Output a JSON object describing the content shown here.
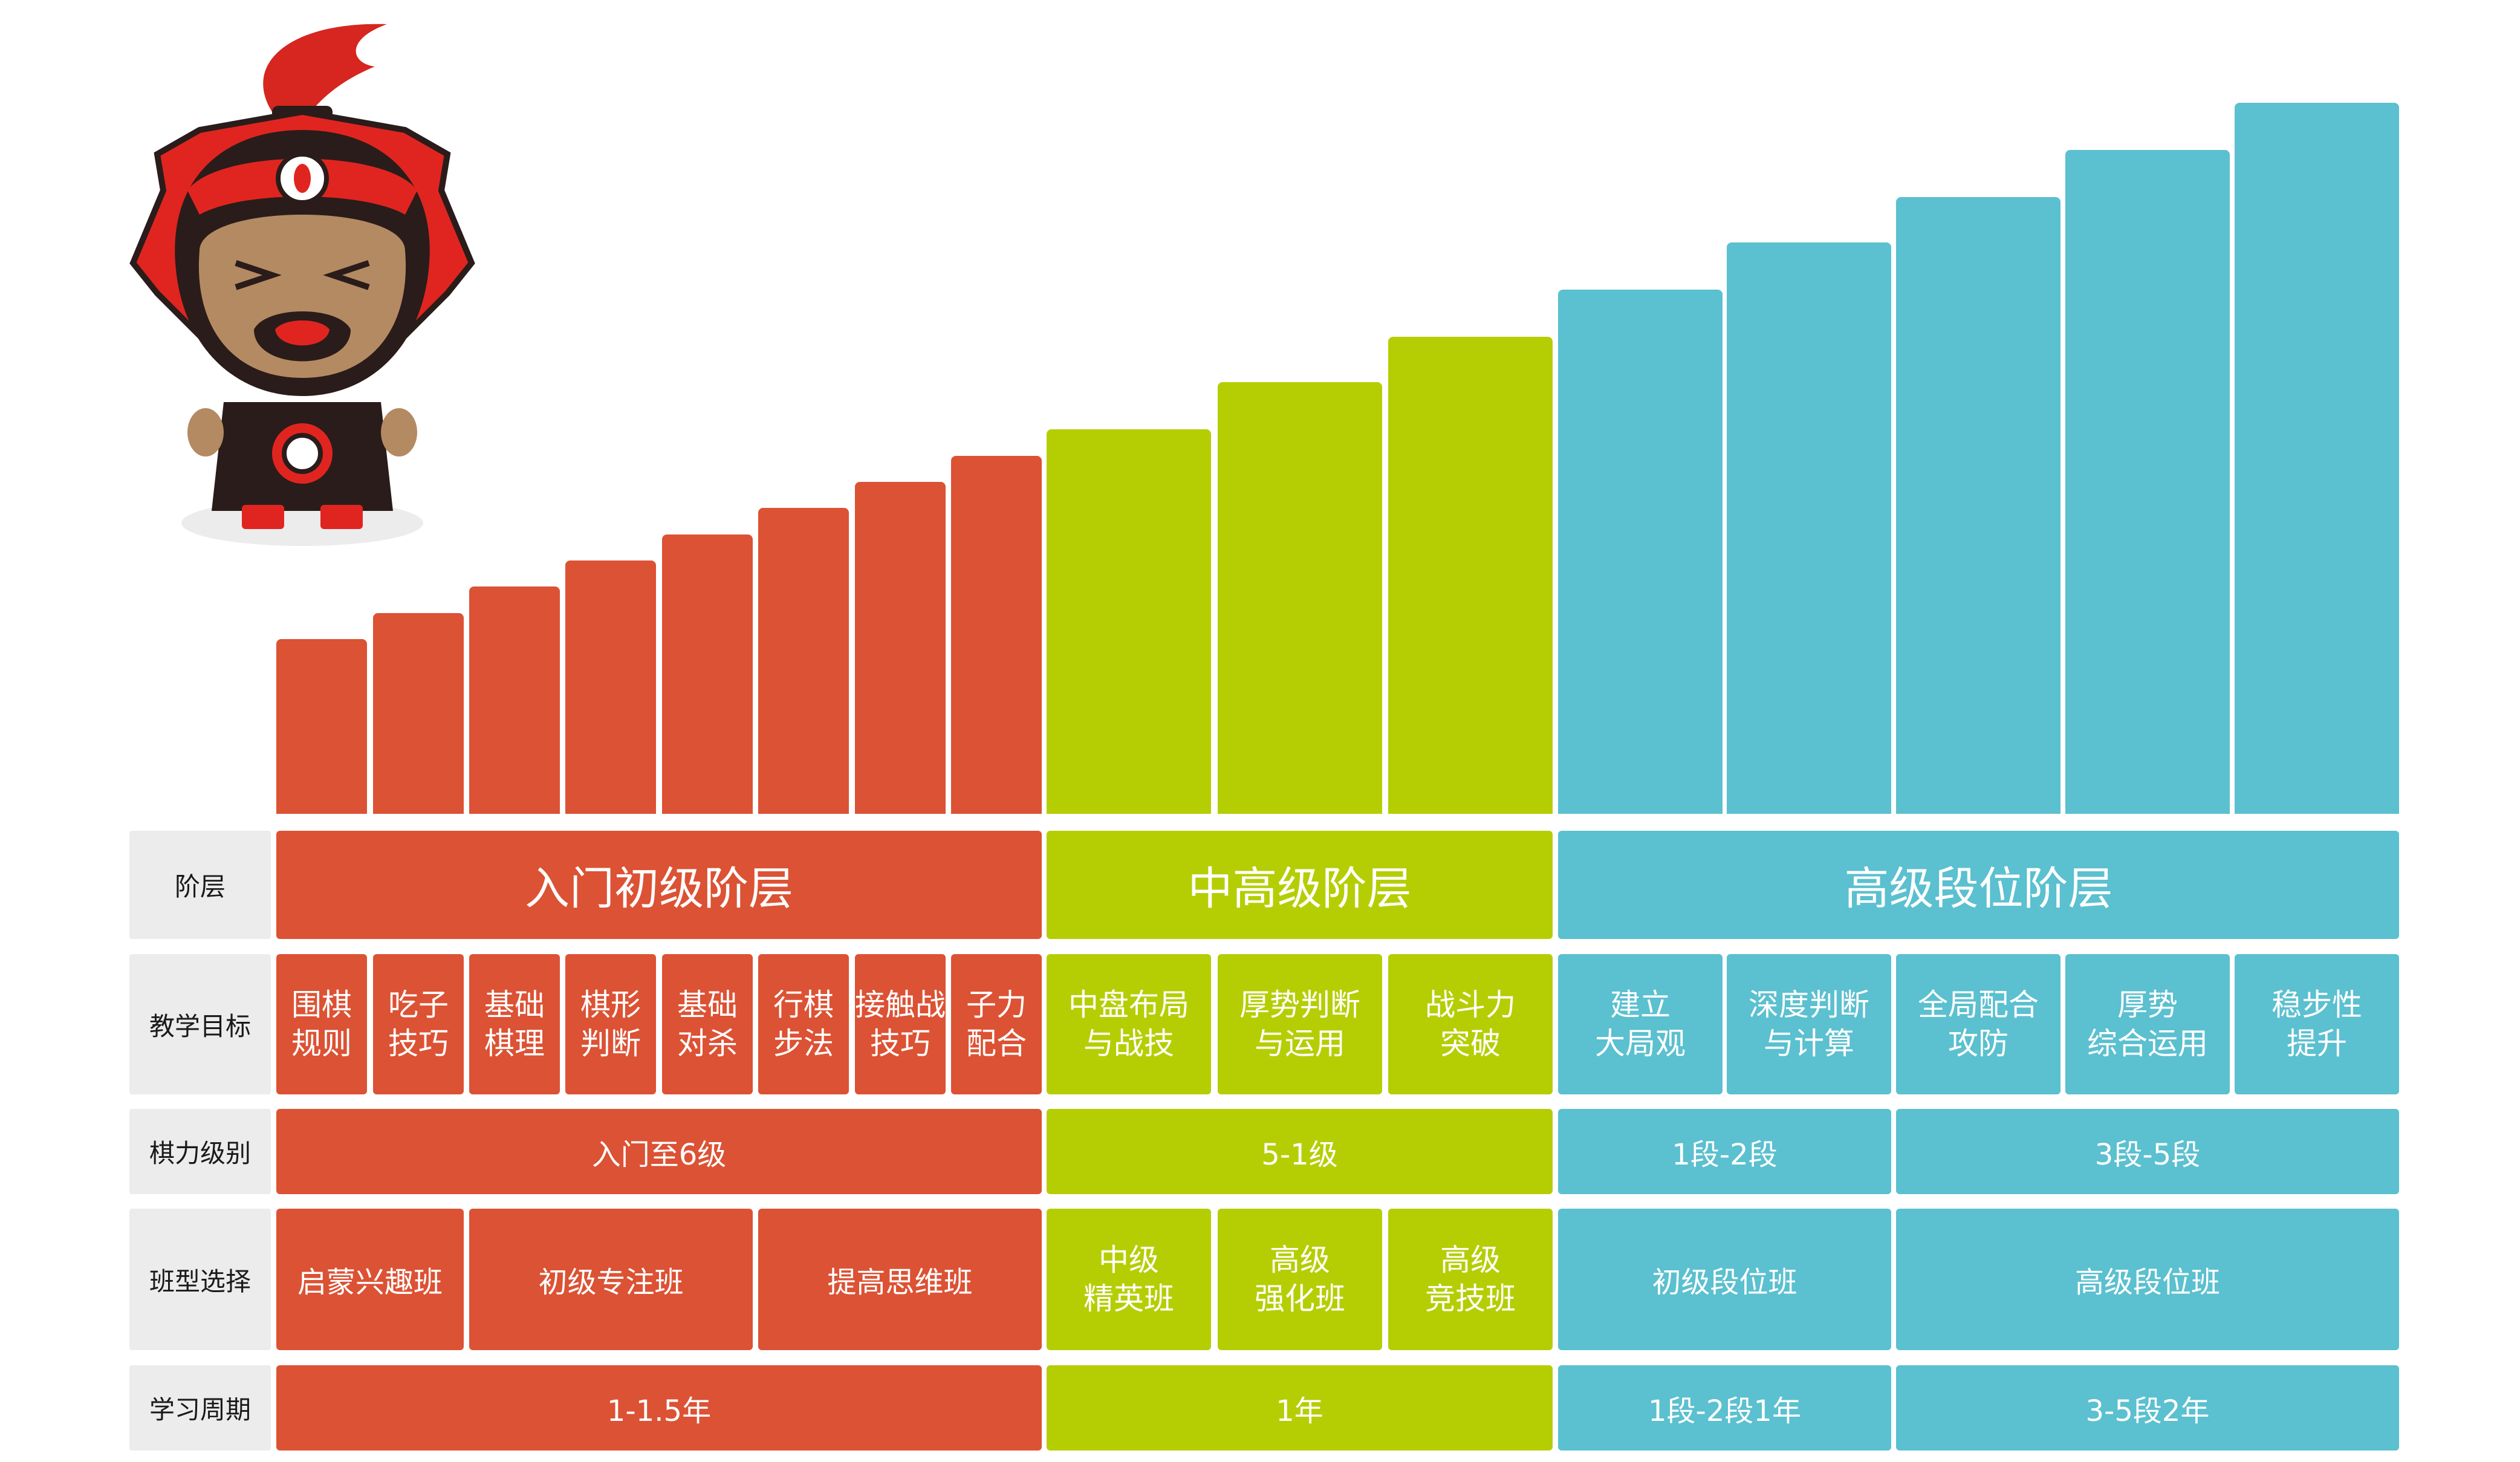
{
  "colors": {
    "red": "#dc5234",
    "green": "#b5ce04",
    "blue": "#5bc0cf",
    "label_bg": "#ececec"
  },
  "mascot": {
    "icon": "warrior-mascot-icon"
  },
  "row_labels": {
    "stage": "阶层",
    "goal": "教学目标",
    "level": "棋力级别",
    "class": "班型选择",
    "period": "学习周期"
  },
  "stages": [
    {
      "name": "入门初级阶层",
      "color": "red"
    },
    {
      "name": "中高级阶层",
      "color": "green"
    },
    {
      "name": "高级段位阶层",
      "color": "blue"
    }
  ],
  "goals": [
    "围棋\n规则",
    "吃子\n技巧",
    "基础\n棋理",
    "棋形\n判断",
    "基础\n对杀",
    "行棋\n步法",
    "接触战\n技巧",
    "子力\n配合",
    "中盘布局\n与战技",
    "厚势判断\n与运用",
    "战斗力\n突破",
    "建立\n大局观",
    "深度判断\n与计算",
    "全局配合\n攻防",
    "厚势\n综合运用",
    "稳步性\n提升"
  ],
  "levels": [
    "入门至6级",
    "5-1级",
    "1段-2段",
    "3段-5段"
  ],
  "classes": [
    "启蒙兴趣班",
    "初级专注班",
    "提高思维班",
    "中级\n精英班",
    "高级\n强化班",
    "高级\n竞技班",
    "初级段位班",
    "高级段位班"
  ],
  "periods": [
    "1-1.5年",
    "1年",
    "1段-2段1年",
    "3-5段2年"
  ],
  "chart_data": {
    "type": "bar",
    "categories": [
      "围棋规则",
      "吃子技巧",
      "基础棋理",
      "棋形判断",
      "基础对杀",
      "行棋步法",
      "接触战技巧",
      "子力配合",
      "中盘布局与战技",
      "厚势判断与运用",
      "战斗力突破",
      "建立大局观",
      "深度判断与计算",
      "全局配合攻防",
      "厚势综合运用",
      "稳步性提升"
    ],
    "values": [
      1,
      1.15,
      1.3,
      1.45,
      1.6,
      1.75,
      1.9,
      2.05,
      2.2,
      2.47,
      2.73,
      3,
      3.27,
      3.53,
      3.8,
      4.07
    ],
    "groups": [
      "red",
      "red",
      "red",
      "red",
      "red",
      "red",
      "red",
      "red",
      "green",
      "green",
      "green",
      "blue",
      "blue",
      "blue",
      "blue",
      "blue"
    ],
    "title": "",
    "xlabel": "",
    "ylabel": "",
    "ylim": [
      0,
      4.07
    ],
    "grid": false,
    "legend": "none"
  }
}
